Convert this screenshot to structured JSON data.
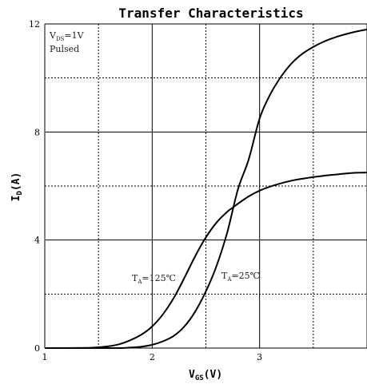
{
  "chart_data": {
    "type": "line",
    "title": "Transfer Characteristics",
    "xlabel": {
      "main": "V",
      "sub": "GS",
      "unit": "(V)"
    },
    "ylabel": {
      "main": "I",
      "sub": "D",
      "unit": "(A)"
    },
    "xlim": [
      1,
      4
    ],
    "ylim": [
      0,
      12
    ],
    "x_ticks": [
      1,
      2,
      3
    ],
    "y_ticks": [
      0,
      4,
      8,
      12
    ],
    "grid": true,
    "conditions": [
      {
        "main": "V",
        "sub": "DS",
        "rest": "=1V"
      },
      {
        "text": "Pulsed"
      }
    ],
    "series": [
      {
        "name": "TA=125℃",
        "label": {
          "main": "T",
          "sub": "A",
          "rest": "=125℃"
        },
        "x": [
          1.0,
          1.2,
          1.4,
          1.5,
          1.6,
          1.7,
          1.8,
          1.9,
          2.0,
          2.1,
          2.2,
          2.3,
          2.4,
          2.5,
          2.6,
          2.7,
          2.75,
          2.8,
          2.9,
          3.0,
          3.1,
          3.2,
          3.3,
          3.4,
          3.5,
          3.6,
          3.7,
          3.8,
          3.9,
          4.0
        ],
        "y": [
          0.0,
          0.0,
          0.01,
          0.03,
          0.07,
          0.15,
          0.3,
          0.5,
          0.8,
          1.25,
          1.85,
          2.6,
          3.4,
          4.1,
          4.65,
          5.05,
          5.2,
          5.35,
          5.62,
          5.83,
          5.98,
          6.1,
          6.2,
          6.27,
          6.33,
          6.38,
          6.42,
          6.46,
          6.49,
          6.5
        ]
      },
      {
        "name": "TA=25℃",
        "label": {
          "main": "T",
          "sub": "A",
          "rest": "=25℃"
        },
        "x": [
          1.0,
          1.5,
          1.7,
          1.8,
          1.9,
          2.0,
          2.1,
          2.2,
          2.3,
          2.4,
          2.5,
          2.6,
          2.7,
          2.8,
          2.9,
          3.0,
          3.1,
          3.2,
          3.3,
          3.4,
          3.5,
          3.6,
          3.7,
          3.8,
          3.9,
          4.0
        ],
        "y": [
          0.0,
          0.0,
          0.0,
          0.02,
          0.05,
          0.12,
          0.25,
          0.45,
          0.8,
          1.35,
          2.1,
          3.05,
          4.3,
          5.9,
          7.0,
          8.5,
          9.4,
          10.05,
          10.55,
          10.9,
          11.15,
          11.35,
          11.5,
          11.62,
          11.72,
          11.8
        ]
      }
    ]
  }
}
